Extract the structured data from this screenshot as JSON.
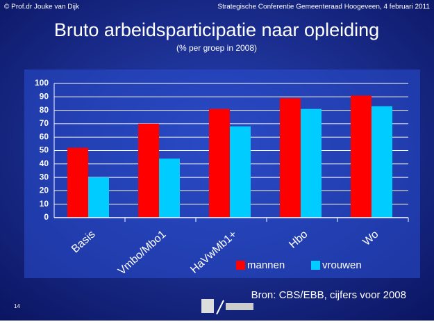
{
  "header": {
    "author": "© Prof.dr Jouke van Dijk",
    "event": "Strategische Conferentie Gemeenteraad Hoogeveen, 4 februari 2011"
  },
  "chart_data": {
    "type": "bar",
    "title": "Bruto arbeidsparticipatie naar opleiding",
    "subtitle": "(% per groep in 2008)",
    "categories": [
      "Basis",
      "Vmbo/Mbo1",
      "HaVwMb1+",
      "Hbo",
      "Wo"
    ],
    "series": [
      {
        "name": "mannen",
        "color": "#ff0000",
        "values": [
          52,
          70,
          81,
          89,
          91
        ]
      },
      {
        "name": "vrouwen",
        "color": "#00ccff",
        "values": [
          30,
          44,
          68,
          81,
          83
        ]
      }
    ],
    "ylim": [
      0,
      100
    ],
    "yticks": [
      0,
      10,
      20,
      30,
      40,
      50,
      60,
      70,
      80,
      90,
      100
    ],
    "grid": true,
    "source": "Bron: CBS/EBB, cijfers voor  2008"
  },
  "slide_number": "14"
}
